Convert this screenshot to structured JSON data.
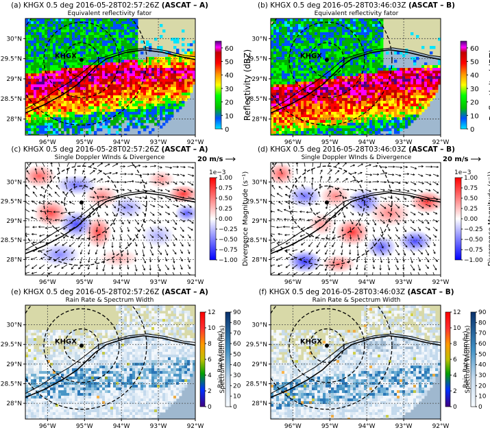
{
  "colors": {
    "land": "#d8d9a8",
    "water": "#9fb8cf",
    "grid": "#444444"
  },
  "chart_data": [
    {
      "type": "heatmap",
      "panel": "a",
      "title_prefix": "(a) KHGX 0.5 deg 2016-05-28T02:57:26Z ",
      "title_bold": "(ASCAT – A)",
      "subtitle": "Equivalent reflectivity fator",
      "lat_ticks": [
        "30°N",
        "29.5°N",
        "29°N",
        "28.5°N",
        "28°N"
      ],
      "lon_ticks": [
        "96°W",
        "95°W",
        "94°W",
        "93°W",
        "92°W"
      ],
      "radar_label": "KHGX",
      "colorbar": {
        "label": "Reflectivity (dBZ)",
        "ticks": [
          "60",
          "50",
          "40",
          "30",
          "20",
          "10",
          "0"
        ],
        "range": [
          0,
          65
        ]
      }
    },
    {
      "type": "heatmap",
      "panel": "b",
      "title_prefix": "(b) KHGX 0.5 deg 2016-05-28T03:46:03Z ",
      "title_bold": "(ASCAT – B)",
      "subtitle": "Equivalent reflectivity fator",
      "lat_ticks": [
        "30°N",
        "29.5°N",
        "29°N",
        "28.5°N",
        "28°N"
      ],
      "lon_ticks": [
        "96°W",
        "95°W",
        "94°W",
        "93°W",
        "92°W"
      ],
      "radar_label": "KHGX",
      "colorbar": {
        "label": "Reflectivity (dBZ)",
        "ticks": [
          "60",
          "50",
          "40",
          "30",
          "20",
          "10",
          "0"
        ],
        "range": [
          0,
          65
        ]
      }
    },
    {
      "type": "heatmap",
      "panel": "c",
      "title_prefix": "(c) KHGX 0.5 deg 2016-05-28T02:57:26Z ",
      "title_bold": "(ASCAT – A)",
      "subtitle": "Single Doppler WInds & Divergence",
      "wind_ref": "20 m/s",
      "lat_ticks": [
        "30°N",
        "29.5°N",
        "29°N",
        "28.5°N",
        "28°N"
      ],
      "lon_ticks": [
        "96°W",
        "95°W",
        "94°W",
        "93°W",
        "92°W"
      ],
      "colorbar": {
        "label": "Divergence Magnitude (s⁻¹)",
        "scale": "1e−3",
        "ticks": [
          "1.00",
          "0.75",
          "0.50",
          "0.25",
          "0.00",
          "−0.25",
          "−0.50",
          "−0.75",
          "−1.00"
        ],
        "range": [
          -1.0,
          1.0
        ]
      }
    },
    {
      "type": "heatmap",
      "panel": "d",
      "title_prefix": "(d) KHGX 0.5 deg 2016-05-28T03:46:03Z ",
      "title_bold": "(ASCAT – B)",
      "subtitle": "Single Doppler WInds & Divergence",
      "wind_ref": "20 m/s",
      "lat_ticks": [
        "30°N",
        "29.5°N",
        "29°N",
        "28.5°N",
        "28°N"
      ],
      "lon_ticks": [
        "96°W",
        "95°W",
        "94°W",
        "93°W",
        "92°W"
      ],
      "colorbar": {
        "label": "Divergence Magnitude (s⁻¹)",
        "scale": "1e−3",
        "ticks": [
          "1.00",
          "0.75",
          "0.50",
          "0.25",
          "0.00",
          "−0.25",
          "−0.50",
          "−0.75",
          "−1.00"
        ],
        "range": [
          -1.0,
          1.0
        ]
      }
    },
    {
      "type": "heatmap",
      "panel": "e",
      "title_prefix": "(e) KHGX 0.5 deg 2016-05-28T02:57:26Z ",
      "title_bold": "(ASCAT – A)",
      "subtitle": "Rain Rate & Spectrum Width",
      "lat_ticks": [
        "30°N",
        "29.5°N",
        "29°N",
        "28.5°N",
        "28°N"
      ],
      "lon_ticks": [
        "96°W",
        "95°W",
        "94°W",
        "93°W",
        "92°W"
      ],
      "radar_label": "KHGX",
      "colorbar_sw": {
        "label": "Spectrum Width (m/s)",
        "ticks": [
          "12",
          "10",
          "8",
          "6",
          "4",
          "2",
          "0"
        ],
        "range": [
          0,
          12
        ]
      },
      "colorbar_rr": {
        "label": "Rain Rate (mm/hr)",
        "ticks": [
          "90",
          "80",
          "70",
          "60",
          "50",
          "40",
          "30",
          "20",
          "10",
          "0"
        ],
        "range": [
          0,
          90
        ]
      }
    },
    {
      "type": "heatmap",
      "panel": "f",
      "title_prefix": "(f) KHGX 0.5 deg 2016-05-28T03:46:03Z ",
      "title_bold": "(ASCAT – B)",
      "subtitle": "Rain Rate & Spectrum Width",
      "lat_ticks": [
        "30°N",
        "29.5°N",
        "29°N",
        "28.5°N",
        "28°N"
      ],
      "lon_ticks": [
        "96°W",
        "95°W",
        "94°W",
        "93°W",
        "92°W"
      ],
      "radar_label": "KHGX",
      "colorbar_sw": {
        "label": "Spectrum Width (m/s)",
        "ticks": [
          "12",
          "10",
          "8",
          "6",
          "4",
          "2",
          "0"
        ],
        "range": [
          0,
          12
        ]
      },
      "colorbar_rr": {
        "label": "Rain Rate (mm/hr)",
        "ticks": [
          "90",
          "80",
          "70",
          "60",
          "50",
          "40",
          "30",
          "20",
          "10",
          "0"
        ],
        "range": [
          0,
          90
        ]
      }
    }
  ]
}
